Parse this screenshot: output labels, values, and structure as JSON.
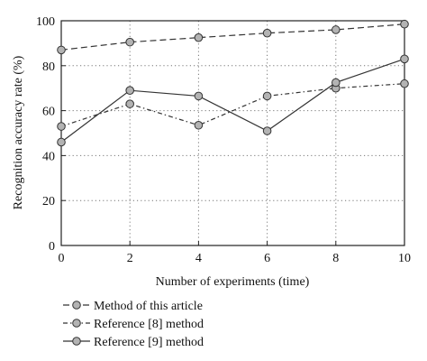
{
  "chart_data": {
    "type": "line",
    "xlabel": "Number of experiments (time)",
    "ylabel": "Recognition accuracy rate (%)",
    "xlim": [
      0,
      10
    ],
    "ylim": [
      0,
      100
    ],
    "x_ticks": [
      0,
      2,
      4,
      6,
      8,
      10
    ],
    "y_ticks": [
      0,
      20,
      40,
      60,
      80,
      100
    ],
    "grid": true,
    "legend_position": "bottom",
    "x": [
      0,
      2,
      4,
      6,
      8,
      10
    ],
    "series": [
      {
        "name": "Method of this article",
        "style": "dashed",
        "values": [
          87,
          90.5,
          92.5,
          94.5,
          96,
          98.5
        ]
      },
      {
        "name": "Reference [8] method",
        "style": "dash-dot",
        "values": [
          53,
          63,
          53.5,
          66.5,
          70,
          72
        ]
      },
      {
        "name": "Reference [9] method",
        "style": "solid",
        "values": [
          46,
          69,
          66.5,
          51,
          72.5,
          83
        ]
      }
    ],
    "colors": {
      "line": "#333333",
      "marker_fill": "#b3b3b3",
      "grid": "#777777"
    }
  }
}
